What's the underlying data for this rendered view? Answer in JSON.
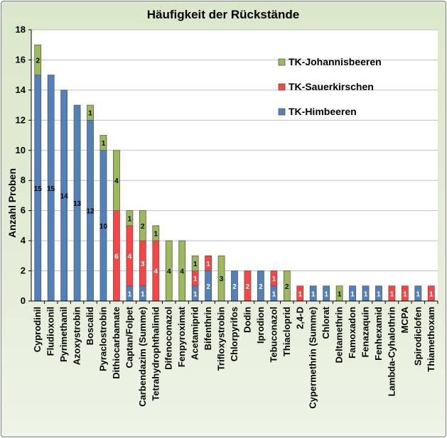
{
  "chart_data": {
    "type": "bar",
    "stacked": true,
    "title": "Häufigkeit der Rückstände",
    "ylabel": "Anzahl Proben",
    "xlabel": "",
    "ylim": [
      0,
      18
    ],
    "yticks": [
      0,
      2,
      4,
      6,
      8,
      10,
      12,
      14,
      16,
      18
    ],
    "legend_position": "top-right",
    "categories": [
      "Cyprodinil",
      "Fludioxonil",
      "Pyrimethanil",
      "Azoxystrobin",
      "Boscalid",
      "Pyraclostrobin",
      "Dithiocarbamate",
      "Captan/Folpet",
      "Carbendazim (Summe)",
      "Tetrahydrophthalimid",
      "Difenoconazol",
      "Fenpyroximat",
      "Acetamiprid",
      "Bifenthrin",
      "Trifloxystrobin",
      "Chlorpyrifos",
      "Dodin",
      "Iprodion",
      "Tebuconazol",
      "Thiacloprid",
      "2,4-D",
      "Cypermethrin (Summe)",
      "Chlorat",
      "Deltamethrin",
      "Famoxadon",
      "Fenazaquin",
      "Fenhexamid",
      "Lambda-Cyhalothrin",
      "MCPA",
      "Spirodiclofen",
      "Thiamethoxam"
    ],
    "series": [
      {
        "name": "TK-Himbeeren",
        "color": "#4f81bd",
        "values": [
          15,
          15,
          14,
          13,
          12,
          10,
          0,
          1,
          1,
          0,
          0,
          0,
          1,
          2,
          0,
          2,
          0,
          2,
          1,
          0,
          0,
          1,
          1,
          0,
          1,
          1,
          1,
          0,
          0,
          1,
          0
        ]
      },
      {
        "name": "TK-Sauerkirschen",
        "color": "#ff4343",
        "values": [
          0,
          0,
          0,
          0,
          0,
          0,
          6,
          4,
          3,
          4,
          0,
          0,
          1,
          1,
          0,
          0,
          2,
          0,
          1,
          0,
          1,
          0,
          0,
          0,
          0,
          0,
          0,
          1,
          1,
          0,
          1
        ]
      },
      {
        "name": "TK-Johannisbeeren",
        "color": "#9bbb59",
        "values": [
          2,
          0,
          0,
          0,
          1,
          1,
          4,
          1,
          2,
          1,
          4,
          4,
          1,
          0,
          3,
          0,
          0,
          0,
          0,
          2,
          0,
          0,
          0,
          1,
          0,
          0,
          0,
          0,
          0,
          0,
          0
        ]
      }
    ],
    "legend_order": [
      "TK-Johannisbeeren",
      "TK-Sauerkirschen",
      "TK-Himbeeren"
    ]
  }
}
